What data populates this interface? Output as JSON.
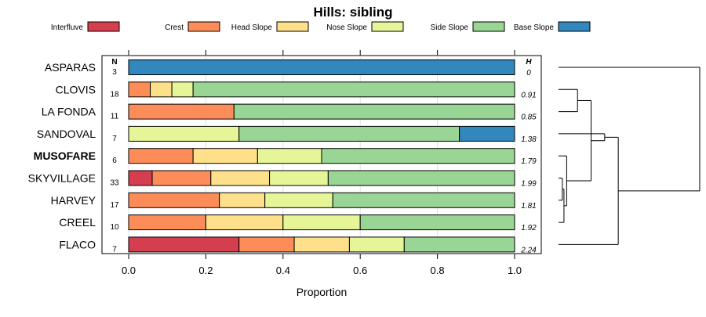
{
  "chart_data": {
    "type": "bar",
    "orientation": "horizontal",
    "stacked": true,
    "title": "Hills: sibling",
    "xlabel": "Proportion",
    "ylabel": "",
    "xlim": [
      0,
      1
    ],
    "xticks": [
      "0.0",
      "0.2",
      "0.4",
      "0.6",
      "0.8",
      "1.0"
    ],
    "legend": {
      "placement": "top",
      "entries": [
        {
          "name": "Interfluve",
          "color": "#d53e4f"
        },
        {
          "name": "Crest",
          "color": "#fc8d59"
        },
        {
          "name": "Head Slope",
          "color": "#fee08b"
        },
        {
          "name": "Nose Slope",
          "color": "#e6f598"
        },
        {
          "name": "Side Slope",
          "color": "#99d594"
        },
        {
          "name": "Base Slope",
          "color": "#3288bd"
        }
      ]
    },
    "n_header": "N",
    "h_header": "H",
    "categories": [
      {
        "name": "ASPARAS",
        "bold": false,
        "n": "3",
        "h": "0",
        "values": [
          0,
          0,
          0,
          0,
          0,
          1.0
        ]
      },
      {
        "name": "CLOVIS",
        "bold": false,
        "n": "18",
        "h": "0.91",
        "values": [
          0,
          0.056,
          0.056,
          0.055,
          0.833,
          0
        ]
      },
      {
        "name": "LA FONDA",
        "bold": false,
        "n": "11",
        "h": "0.85",
        "values": [
          0,
          0.273,
          0,
          0,
          0.727,
          0
        ]
      },
      {
        "name": "SANDOVAL",
        "bold": false,
        "n": "7",
        "h": "1.38",
        "values": [
          0,
          0,
          0,
          0.286,
          0.571,
          0.143
        ]
      },
      {
        "name": "MUSOFARE",
        "bold": true,
        "n": "6",
        "h": "1.79",
        "values": [
          0,
          0.167,
          0.167,
          0.166,
          0.5,
          0
        ]
      },
      {
        "name": "SKYVILLAGE",
        "bold": false,
        "n": "33",
        "h": "1.99",
        "values": [
          0.061,
          0.152,
          0.152,
          0.152,
          0.483,
          0
        ]
      },
      {
        "name": "HARVEY",
        "bold": false,
        "n": "17",
        "h": "1.81",
        "values": [
          0,
          0.235,
          0.118,
          0.176,
          0.471,
          0
        ]
      },
      {
        "name": "CREEL",
        "bold": false,
        "n": "10",
        "h": "1.92",
        "values": [
          0,
          0.2,
          0.2,
          0.2,
          0.4,
          0
        ]
      },
      {
        "name": "FLACO",
        "bold": false,
        "n": "7",
        "h": "2.24",
        "values": [
          0.286,
          0.143,
          0.143,
          0.142,
          0.286,
          0
        ]
      }
    ],
    "dendrogram": {
      "leaf_order": [
        "ASPARAS",
        "CLOVIS",
        "LA FONDA",
        "SANDOVAL",
        "MUSOFARE",
        "SKYVILLAGE",
        "HARVEY",
        "CREEL",
        "FLACO"
      ],
      "merges": [
        {
          "a": "SKYVILLAGE",
          "b": "HARVEY",
          "height": 0.07
        },
        {
          "a": "m0",
          "b": "CREEL",
          "height": 0.1
        },
        {
          "a": "MUSOFARE",
          "b": "m1",
          "height": 0.15
        },
        {
          "a": "CLOVIS",
          "b": "LA FONDA",
          "height": 0.35
        },
        {
          "a": "m3",
          "b": "m2",
          "height": 0.6
        },
        {
          "a": "SANDOVAL",
          "b": "m4",
          "height": 0.85
        },
        {
          "a": "m5",
          "b": "FLACO",
          "height": 1.1
        },
        {
          "a": "ASPARAS",
          "b": "m6",
          "height": 2.6
        }
      ],
      "max_height": 2.6
    }
  }
}
